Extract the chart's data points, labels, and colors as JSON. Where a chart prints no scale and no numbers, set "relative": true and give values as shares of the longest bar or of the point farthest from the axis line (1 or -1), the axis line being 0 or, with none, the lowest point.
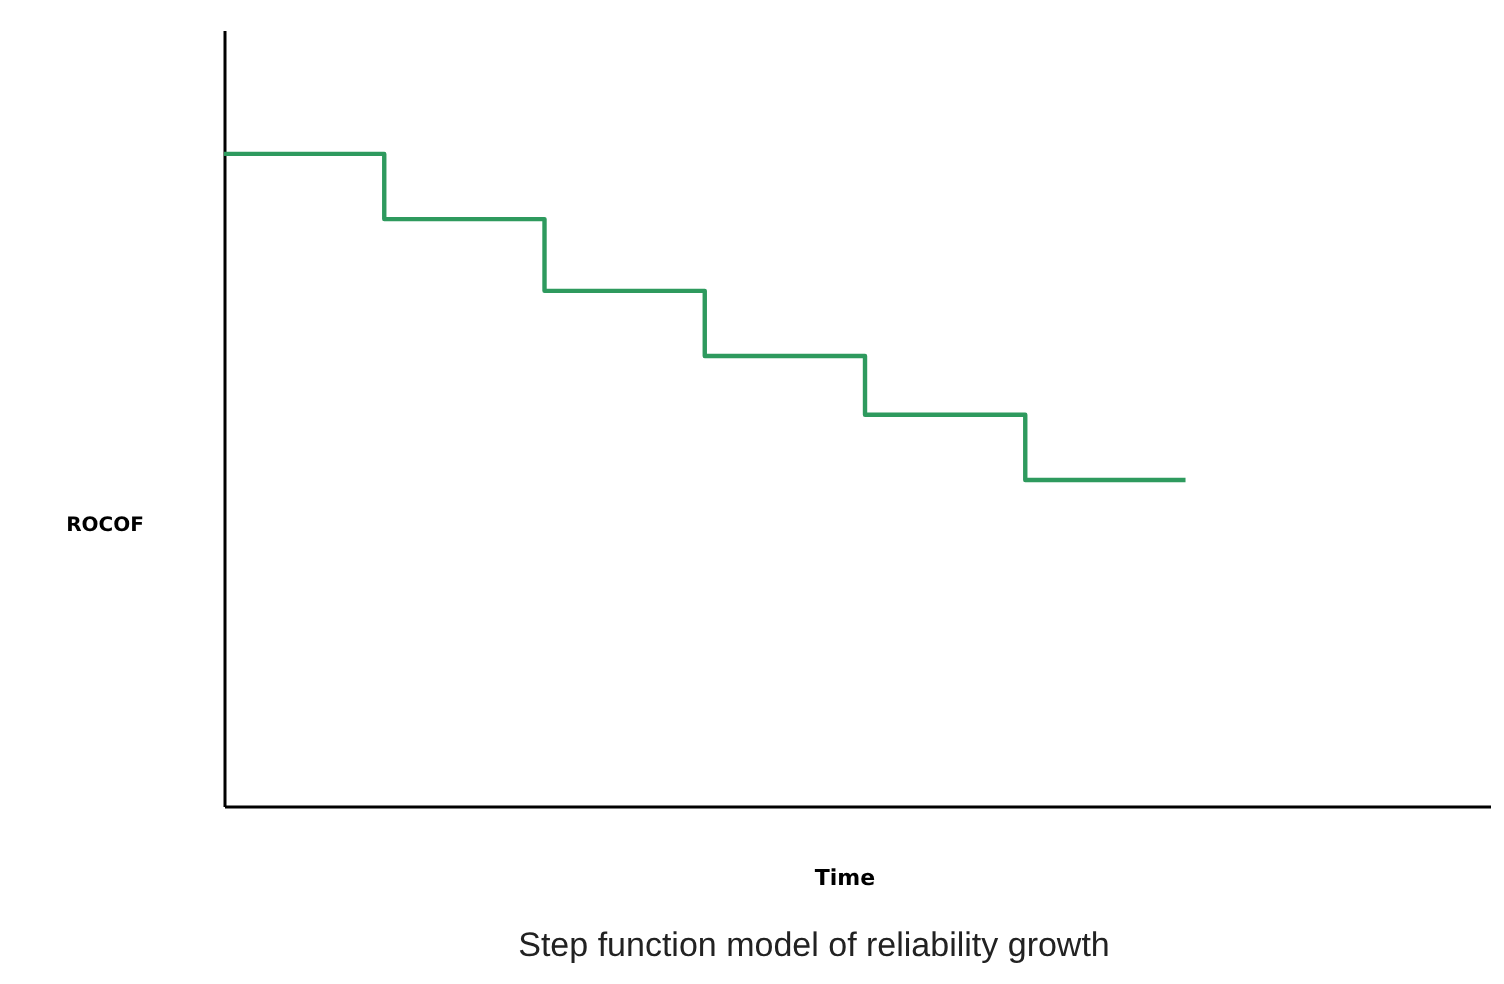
{
  "chart_data": {
    "type": "step",
    "relative": true,
    "xlabel": "Time",
    "ylabel": "ROCOF",
    "categories": [
      null,
      null,
      null,
      null,
      null,
      null,
      null
    ],
    "series": [
      {
        "color": "#2e9a5e",
        "values": [
          1,
          0.9,
          0.79,
          0.69,
          0.6,
          0.5,
          0.5
        ]
      }
    ],
    "annotations": [
      "Step function model of reliability growth"
    ],
    "tick_labels": false,
    "grid": false
  }
}
